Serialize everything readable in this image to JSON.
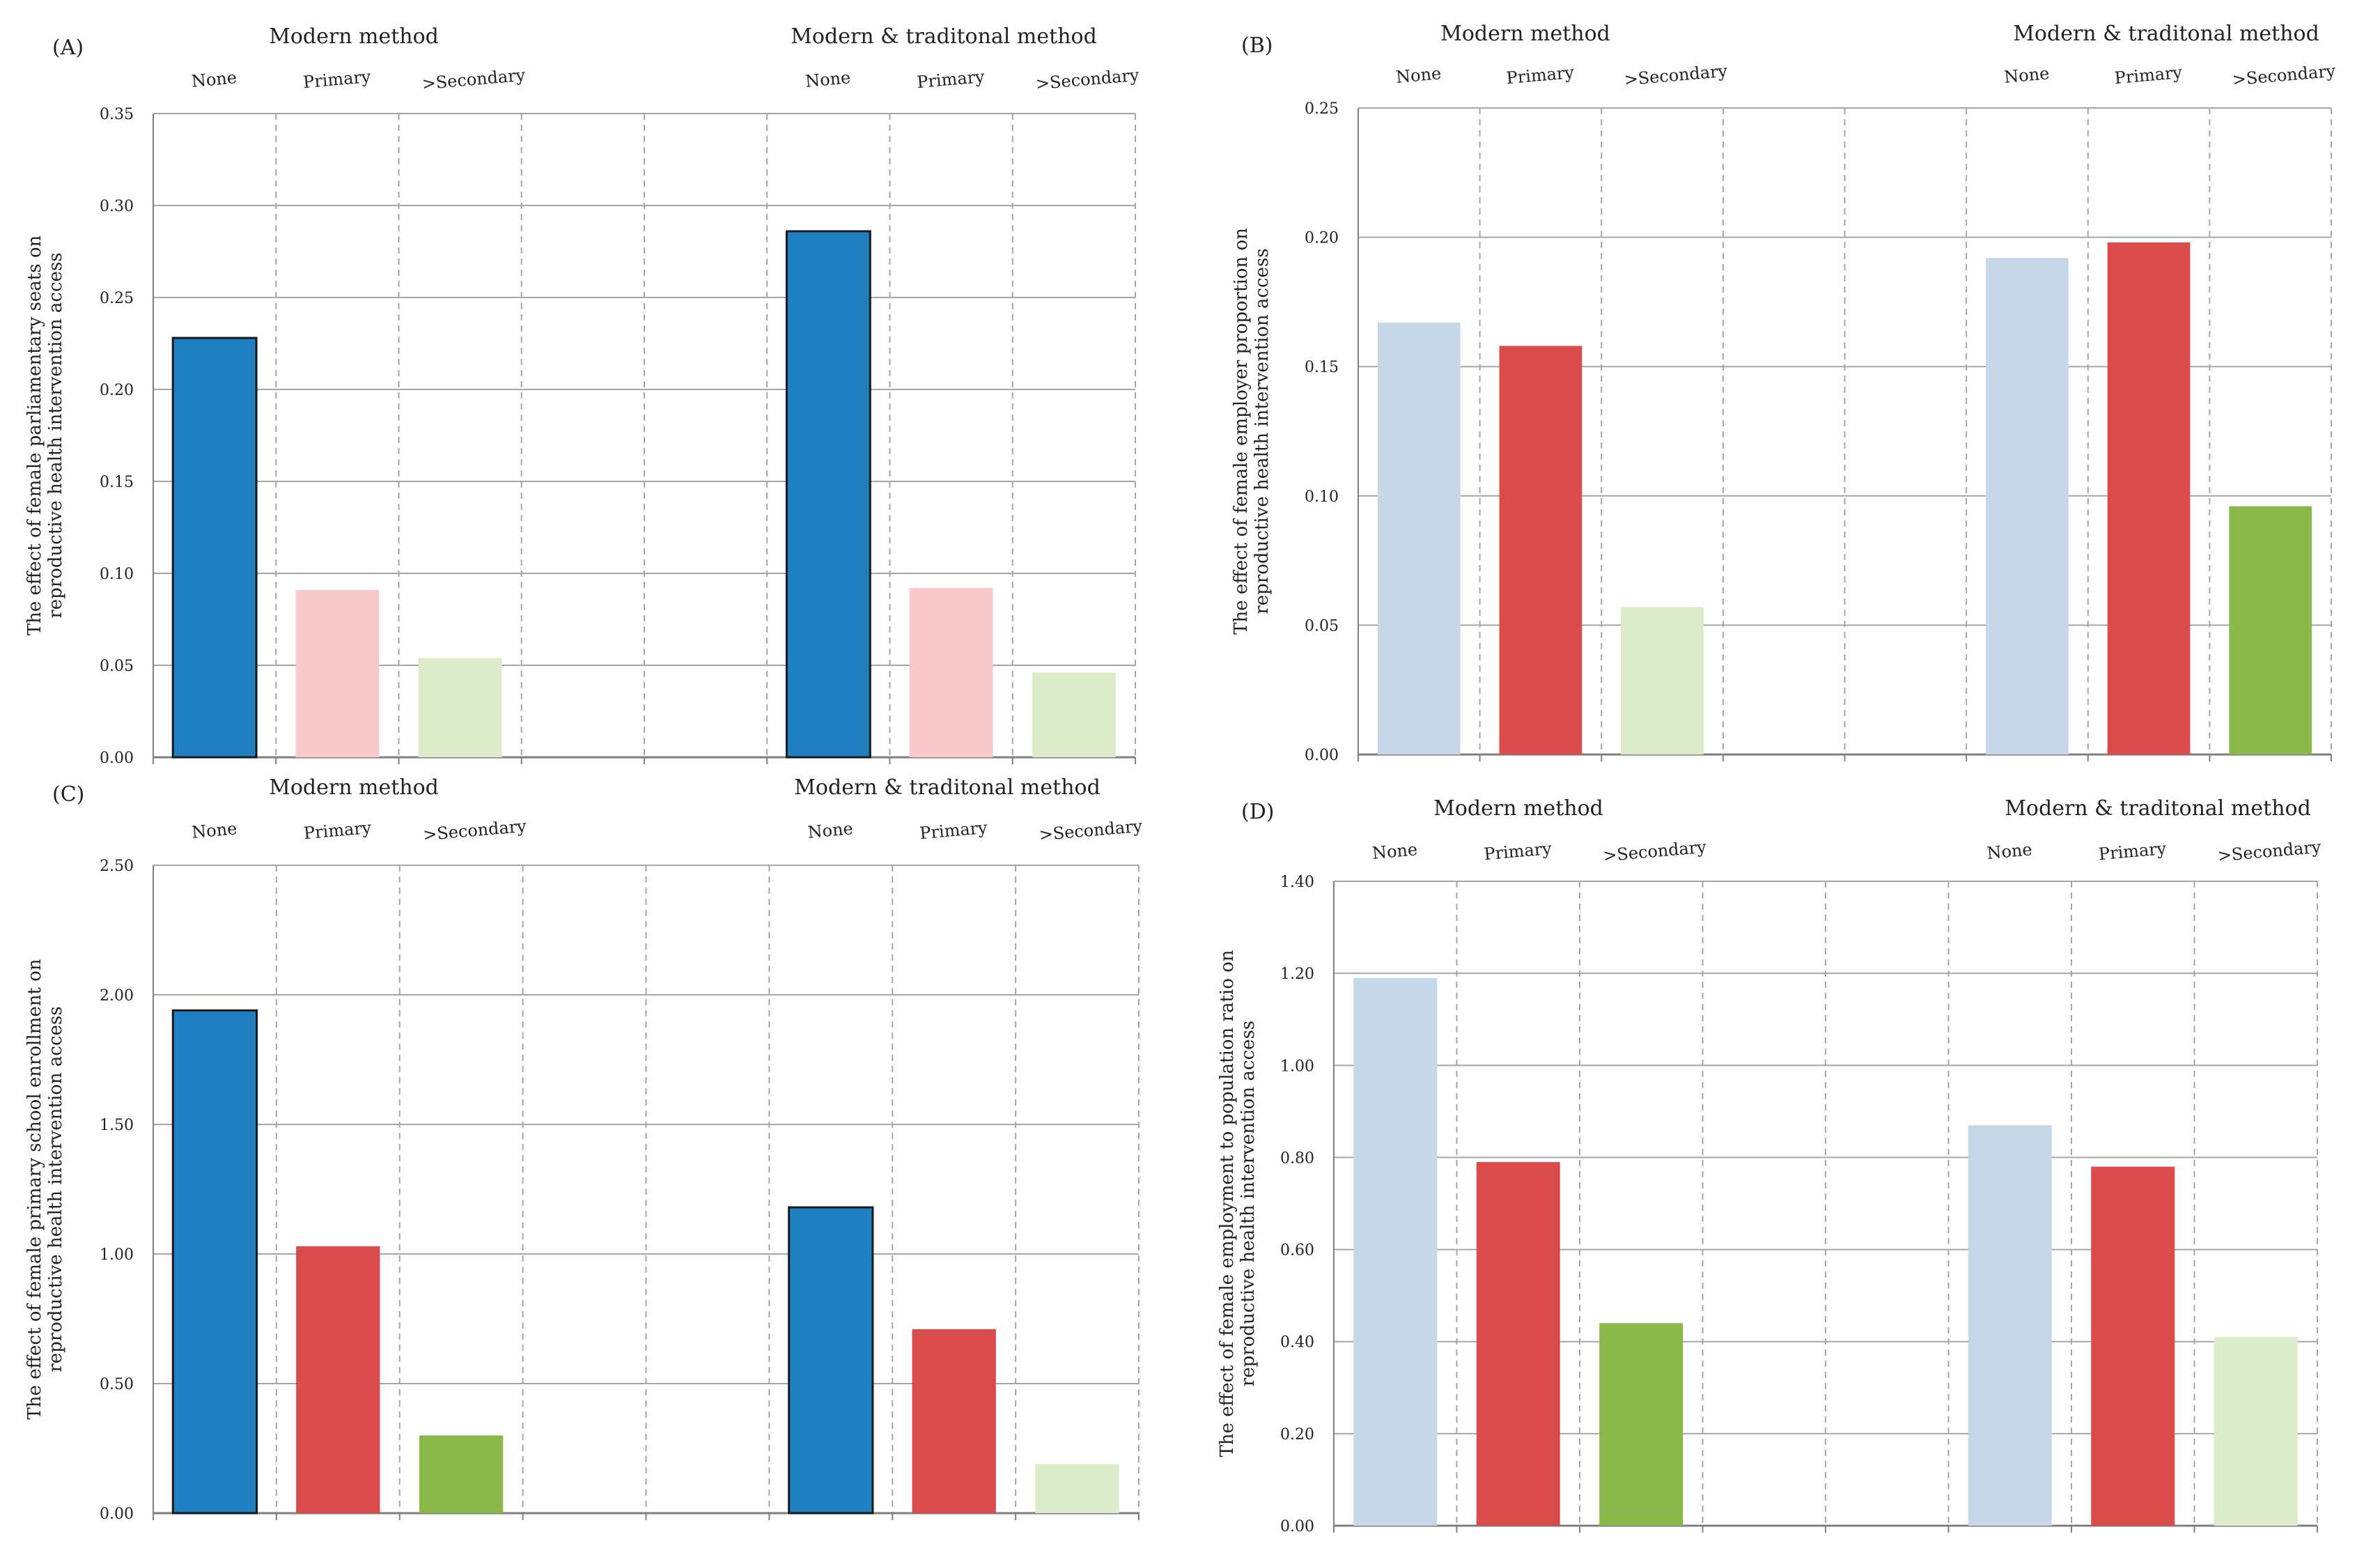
{
  "figure": {
    "group_labels": [
      "Modern method",
      "Modern & traditonal method"
    ],
    "category_labels": [
      "None",
      "Primary",
      ">Secondary"
    ]
  },
  "colors": {
    "dark_blue": "#1f7fc1",
    "light_blue": "#c6d7ea",
    "red": "#da4b4b",
    "pink": "#f7c9cb",
    "green": "#8ab84b",
    "light_green": "#dcebc9",
    "grid": "#a6a6a6",
    "axis": "#7f7f7f",
    "text": "#222222"
  },
  "chart_data": [
    {
      "type": "bar",
      "panel_label": "(A)",
      "ylabel": "The effect of female parliamentary seats on reproductive health intervention access",
      "ylim": [
        0,
        0.35
      ],
      "yticks": [
        "0.00",
        "0.05",
        "0.10",
        "0.15",
        "0.20",
        "0.25",
        "0.30",
        "0.35"
      ],
      "groups": [
        "Modern method",
        "Modern & traditonal method"
      ],
      "categories": [
        "None",
        "Primary",
        ">Secondary"
      ],
      "series": [
        {
          "group": "Modern method",
          "values": [
            0.228,
            0.091,
            0.054
          ],
          "colors": [
            "dark_blue",
            "pink",
            "light_green"
          ]
        },
        {
          "group": "Modern & traditonal method",
          "values": [
            0.286,
            0.092,
            0.046
          ],
          "colors": [
            "dark_blue",
            "pink",
            "light_green"
          ]
        }
      ]
    },
    {
      "type": "bar",
      "panel_label": "(B)",
      "ylabel": "The effect of female employer proportion on reproductive health intervention access",
      "ylim": [
        0,
        0.25
      ],
      "yticks": [
        "0.00",
        "0.05",
        "0.10",
        "0.15",
        "0.20",
        "0.25"
      ],
      "groups": [
        "Modern method",
        "Modern & traditonal method"
      ],
      "categories": [
        "None",
        "Primary",
        ">Secondary"
      ],
      "series": [
        {
          "group": "Modern method",
          "values": [
            0.167,
            0.158,
            0.057
          ],
          "colors": [
            "light_blue",
            "red",
            "light_green"
          ]
        },
        {
          "group": "Modern & traditonal method",
          "values": [
            0.192,
            0.198,
            0.096
          ],
          "colors": [
            "light_blue",
            "red",
            "green"
          ]
        }
      ]
    },
    {
      "type": "bar",
      "panel_label": "(C)",
      "ylabel": "The effect of female primary school enrollment on reproductive health intervention access",
      "ylim": [
        0,
        2.5
      ],
      "yticks": [
        "0.00",
        "0.50",
        "1.00",
        "1.50",
        "2.00",
        "2.50"
      ],
      "groups": [
        "Modern method",
        "Modern & traditonal method"
      ],
      "categories": [
        "None",
        "Primary",
        ">Secondary"
      ],
      "series": [
        {
          "group": "Modern method",
          "values": [
            1.94,
            1.03,
            0.3
          ],
          "colors": [
            "dark_blue",
            "red",
            "green"
          ]
        },
        {
          "group": "Modern & traditonal method",
          "values": [
            1.18,
            0.71,
            0.19
          ],
          "colors": [
            "dark_blue",
            "red",
            "light_green"
          ]
        }
      ]
    },
    {
      "type": "bar",
      "panel_label": "(D)",
      "ylabel": "The effect of female employment to population ratio on reproductive health intervention access",
      "ylim": [
        0,
        1.4
      ],
      "yticks": [
        "0.00",
        "0.20",
        "0.40",
        "0.60",
        "0.80",
        "1.00",
        "1.20",
        "1.40"
      ],
      "groups": [
        "Modern method",
        "Modern & traditonal method"
      ],
      "categories": [
        "None",
        "Primary",
        ">Secondary"
      ],
      "series": [
        {
          "group": "Modern method",
          "values": [
            1.19,
            0.79,
            0.44
          ],
          "colors": [
            "light_blue",
            "red",
            "green"
          ]
        },
        {
          "group": "Modern & traditonal method",
          "values": [
            0.87,
            0.78,
            0.41
          ],
          "colors": [
            "light_blue",
            "red",
            "light_green"
          ]
        }
      ]
    }
  ]
}
